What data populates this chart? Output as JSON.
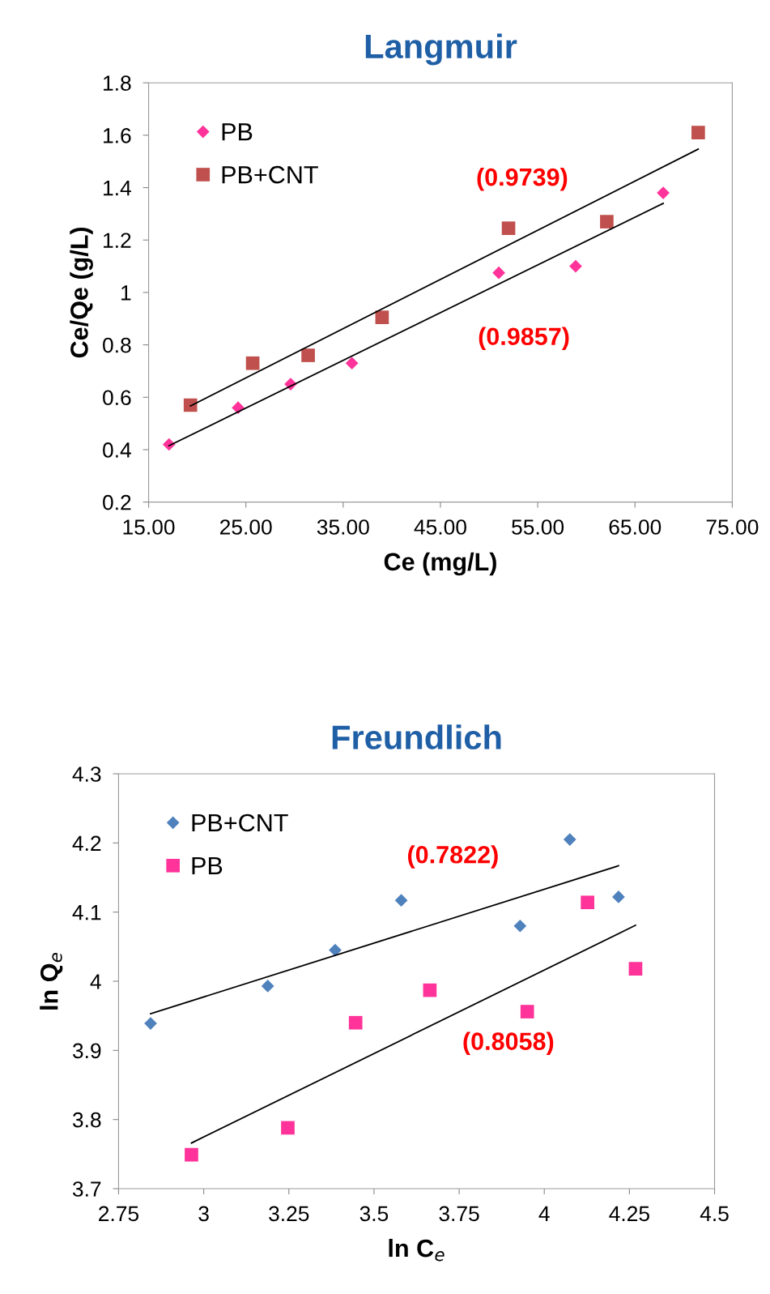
{
  "chart_data": [
    {
      "type": "scatter",
      "title": "Langmuir",
      "xlabel": "Ce (mg/L)",
      "ylabel": "Ce/Qe (g/L)",
      "xlim": [
        15,
        75
      ],
      "xticks": [
        {
          "value": 15,
          "label": "15.00"
        },
        {
          "value": 25,
          "label": "25.00"
        },
        {
          "value": 35,
          "label": "35.00"
        },
        {
          "value": 45,
          "label": "45.00"
        },
        {
          "value": 55,
          "label": "55.00"
        },
        {
          "value": 65,
          "label": "65.00"
        },
        {
          "value": 75,
          "label": "75.00"
        }
      ],
      "ylim": [
        0.2,
        1.8
      ],
      "yticks": [
        0.2,
        0.4,
        0.6,
        0.8,
        1,
        1.2,
        1.4,
        1.6,
        1.8
      ],
      "grid": false,
      "legend": "top left",
      "series": [
        {
          "name": "PB",
          "color": "#ff3399",
          "marker": "diamond",
          "x": [
            17.1,
            24.2,
            29.6,
            35.9,
            51.0,
            58.9,
            67.9
          ],
          "values": [
            0.42,
            0.56,
            0.65,
            0.73,
            1.075,
            1.1,
            1.38
          ]
        },
        {
          "name": "PB+CNT",
          "color": "#c0504d",
          "marker": "square",
          "x": [
            19.3,
            25.7,
            31.4,
            39.0,
            52.0,
            62.1,
            71.5
          ],
          "values": [
            0.57,
            0.73,
            0.76,
            0.905,
            1.245,
            1.27,
            1.61
          ]
        },
        {
          "type": "line",
          "color": "#000000",
          "x": [
            17.1,
            67.9
          ],
          "values": [
            0.415,
            1.34
          ]
        },
        {
          "type": "line",
          "color": "#000000",
          "x": [
            19.3,
            71.5
          ],
          "values": [
            0.567,
            1.547
          ]
        }
      ],
      "annotations": [
        "(0.9739)",
        "(0.9857)"
      ]
    },
    {
      "type": "scatter",
      "title": "Freundlich",
      "xlabel": "ln C$_{e}$",
      "ylabel": "ln Q$_{e}$",
      "xlim": [
        2.75,
        4.5
      ],
      "xticks": [
        2.75,
        3,
        3.25,
        3.5,
        3.75,
        4,
        4.25,
        4.5
      ],
      "ylim": [
        3.7,
        4.3
      ],
      "yticks": [
        3.7,
        3.8,
        3.9,
        4,
        4.1,
        4.2,
        4.3
      ],
      "grid": false,
      "legend": "top left",
      "series": [
        {
          "name": "PB+CNT",
          "color": "#4f81bd",
          "marker": "diamond",
          "x": [
            2.844,
            3.188,
            3.386,
            3.58,
            3.929,
            4.075,
            4.218
          ],
          "values": [
            3.939,
            3.993,
            4.045,
            4.117,
            4.08,
            4.205,
            4.122
          ]
        },
        {
          "name": "PB",
          "color": "#ff3399",
          "marker": "square",
          "x": [
            2.964,
            3.247,
            3.446,
            3.664,
            3.95,
            4.127,
            4.268
          ],
          "values": [
            3.749,
            3.788,
            3.94,
            3.987,
            3.956,
            4.114,
            4.018
          ]
        },
        {
          "type": "line",
          "color": "#000000",
          "x": [
            2.844,
            4.218
          ],
          "values": [
            3.953,
            4.167
          ]
        },
        {
          "type": "line",
          "color": "#000000",
          "x": [
            2.964,
            4.268
          ],
          "values": [
            3.766,
            4.081
          ]
        }
      ],
      "annotations": [
        "(0.7822)",
        "(0.8058)"
      ]
    }
  ]
}
